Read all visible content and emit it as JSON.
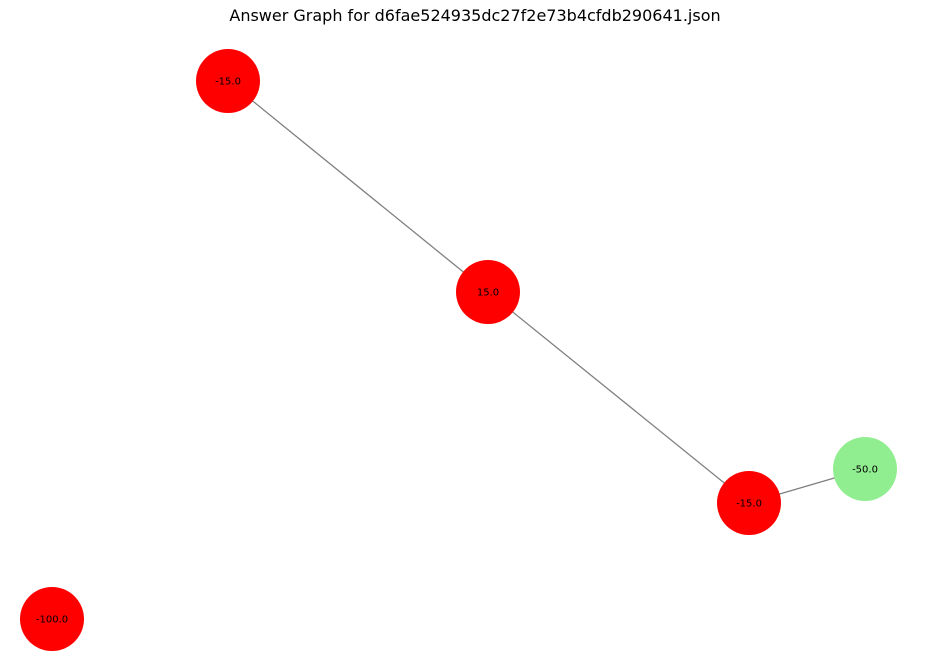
{
  "title": "Answer Graph for d6fae524935dc27f2e73b4cfdb290641.json",
  "colors": {
    "red_node": "#ff0000",
    "green_node": "#90ee90",
    "edge": "#808080",
    "background": "#ffffff"
  },
  "nodes": [
    {
      "id": "n1",
      "label": "-15.0",
      "color": "red_node"
    },
    {
      "id": "n2",
      "label": "15.0",
      "color": "red_node"
    },
    {
      "id": "n3",
      "label": "-15.0",
      "color": "red_node"
    },
    {
      "id": "n4",
      "label": "-50.0",
      "color": "green_node"
    },
    {
      "id": "n5",
      "label": "-100.0",
      "color": "red_node"
    }
  ],
  "edges": [
    {
      "source": "n1",
      "target": "n2"
    },
    {
      "source": "n2",
      "target": "n3"
    },
    {
      "source": "n3",
      "target": "n4"
    }
  ]
}
